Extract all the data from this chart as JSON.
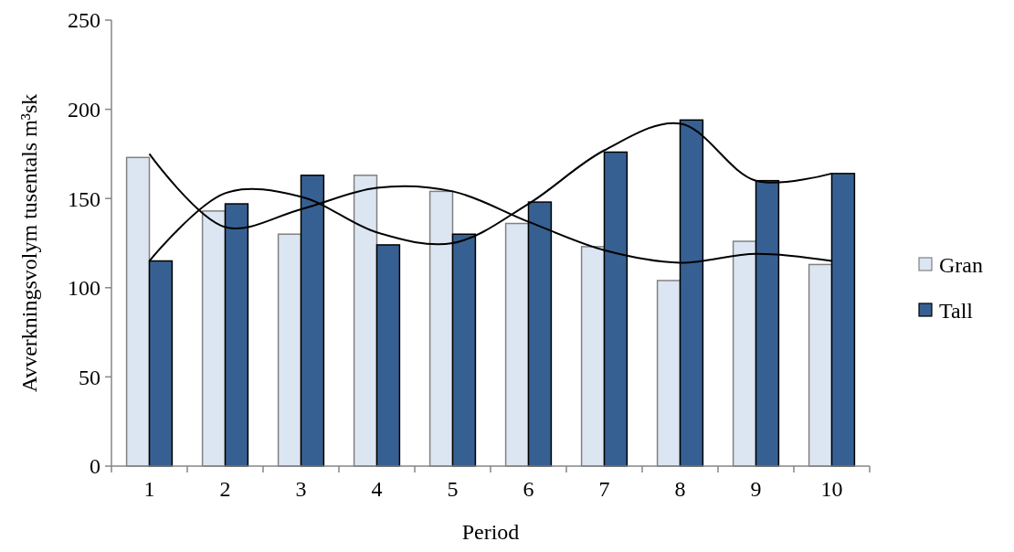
{
  "chart_data": {
    "type": "bar",
    "xlabel": "Period",
    "ylabel": "Avverkningsvolym tusentals m³sk",
    "categories": [
      "1",
      "2",
      "3",
      "4",
      "5",
      "6",
      "7",
      "8",
      "9",
      "10"
    ],
    "series": [
      {
        "name": "Gran",
        "color": "#dce6f2",
        "values": [
          173,
          143,
          130,
          163,
          154,
          136,
          123,
          104,
          126,
          113
        ]
      },
      {
        "name": "Tall",
        "color": "#376092",
        "values": [
          115,
          147,
          163,
          124,
          130,
          148,
          176,
          194,
          160,
          164
        ]
      },
      {
        "type": "line",
        "color": "#000000",
        "values": [
          175,
          134,
          144,
          156,
          154,
          137,
          121,
          114,
          119,
          115
        ]
      },
      {
        "type": "line",
        "color": "#000000",
        "values": [
          115,
          153,
          151,
          131,
          125,
          147,
          177,
          192,
          160,
          164
        ]
      }
    ],
    "ylim": [
      0,
      250
    ],
    "yticks": [
      0,
      50,
      100,
      150,
      200,
      250
    ],
    "grid": false,
    "legend": "right"
  }
}
